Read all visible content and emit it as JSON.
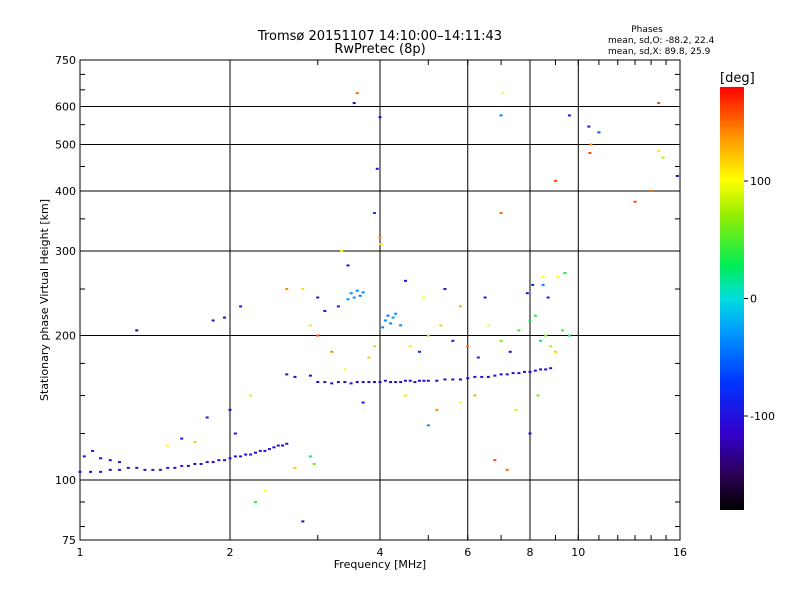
{
  "chart_data": {
    "type": "scatter",
    "title": "Tromsø 20151107 14:10:00–14:11:43",
    "subtitle": "RwPretec (8p)",
    "xlabel": "Frequency [MHz]",
    "ylabel": "Stationary phase Virtual Height [km]",
    "x_scale": "log",
    "y_scale": "log",
    "xlim": [
      1,
      16
    ],
    "ylim": [
      75,
      750
    ],
    "x_ticks": [
      1,
      2,
      4,
      6,
      8,
      10,
      16
    ],
    "x_tick_labels": [
      "1",
      "2",
      "4",
      "6",
      "8",
      "10",
      "16"
    ],
    "y_ticks": [
      75,
      100,
      200,
      300,
      400,
      500,
      600,
      750
    ],
    "y_tick_labels": [
      "75",
      "100",
      "200",
      "300",
      "400",
      "500",
      "600",
      "750"
    ],
    "grid": true,
    "colorbar": {
      "label": "[deg]",
      "range": [
        -180,
        180
      ],
      "ticks": [
        100,
        0,
        -100
      ],
      "tick_labels": [
        "100",
        "0",
        "-100"
      ]
    },
    "stats": {
      "heading": "Phases",
      "line1": "mean, sd,O: -88.2, 22.4",
      "line2": "mean, sd,X:  89.8, 25.9"
    },
    "series": [
      {
        "trace": "low-frequency echo trace (blue)",
        "points": [
          [
            1.0,
            104,
            -105
          ],
          [
            1.05,
            104,
            -105
          ],
          [
            1.1,
            104,
            -100
          ],
          [
            1.15,
            105,
            -105
          ],
          [
            1.2,
            105,
            -100
          ],
          [
            1.25,
            106,
            -100
          ],
          [
            1.3,
            106,
            -105
          ],
          [
            1.35,
            105,
            -100
          ],
          [
            1.4,
            105,
            -105
          ],
          [
            1.45,
            105,
            -100
          ],
          [
            1.5,
            106,
            -100
          ],
          [
            1.55,
            106,
            -105
          ],
          [
            1.6,
            107,
            -100
          ],
          [
            1.65,
            107,
            -105
          ],
          [
            1.7,
            108,
            -100
          ],
          [
            1.75,
            108,
            -105
          ],
          [
            1.8,
            109,
            -100
          ],
          [
            1.85,
            109,
            -105
          ],
          [
            1.9,
            110,
            -100
          ],
          [
            1.95,
            110,
            -105
          ],
          [
            2.0,
            111,
            -100
          ],
          [
            2.05,
            112,
            -105
          ],
          [
            2.1,
            112,
            -100
          ],
          [
            2.15,
            113,
            -105
          ],
          [
            2.2,
            113,
            -100
          ],
          [
            2.25,
            114,
            -105
          ],
          [
            2.3,
            115,
            -100
          ],
          [
            2.35,
            115,
            -105
          ],
          [
            2.4,
            116,
            -100
          ],
          [
            2.45,
            117,
            -105
          ],
          [
            2.5,
            118,
            -100
          ],
          [
            2.55,
            118,
            -105
          ],
          [
            2.6,
            119,
            -100
          ],
          [
            1.02,
            112,
            -110
          ],
          [
            1.06,
            115,
            -100
          ],
          [
            1.1,
            111,
            -105
          ],
          [
            1.15,
            110,
            -100
          ],
          [
            1.2,
            109,
            -105
          ]
        ]
      },
      {
        "trace": "F-region echo trace (blue)",
        "points": [
          [
            3.0,
            160,
            -110
          ],
          [
            3.1,
            160,
            -105
          ],
          [
            3.2,
            159,
            -110
          ],
          [
            3.3,
            160,
            -105
          ],
          [
            3.4,
            160,
            -110
          ],
          [
            3.5,
            159,
            -105
          ],
          [
            3.6,
            160,
            -110
          ],
          [
            3.7,
            160,
            -105
          ],
          [
            3.8,
            160,
            -110
          ],
          [
            3.9,
            160,
            -105
          ],
          [
            4.0,
            160,
            -110
          ],
          [
            4.1,
            161,
            -105
          ],
          [
            4.2,
            160,
            -110
          ],
          [
            4.3,
            160,
            -105
          ],
          [
            4.4,
            160,
            -110
          ],
          [
            4.5,
            161,
            -105
          ],
          [
            4.6,
            161,
            -110
          ],
          [
            4.7,
            160,
            -105
          ],
          [
            4.8,
            161,
            -110
          ],
          [
            4.9,
            161,
            -105
          ],
          [
            5.0,
            161,
            -110
          ],
          [
            5.2,
            161,
            -105
          ],
          [
            5.4,
            162,
            -110
          ],
          [
            5.6,
            162,
            -105
          ],
          [
            5.8,
            162,
            -110
          ],
          [
            6.0,
            163,
            -105
          ],
          [
            6.2,
            164,
            -110
          ],
          [
            6.4,
            164,
            -105
          ],
          [
            6.6,
            164,
            -110
          ],
          [
            6.8,
            165,
            -105
          ],
          [
            7.0,
            166,
            -110
          ],
          [
            7.2,
            166,
            -105
          ],
          [
            7.4,
            167,
            -110
          ],
          [
            7.6,
            167,
            -105
          ],
          [
            7.8,
            168,
            -110
          ],
          [
            8.0,
            168,
            -105
          ],
          [
            8.2,
            169,
            -110
          ],
          [
            8.4,
            170,
            -105
          ],
          [
            8.6,
            170,
            -110
          ],
          [
            8.8,
            171,
            -105
          ],
          [
            2.9,
            165,
            -110
          ],
          [
            2.7,
            164,
            -105
          ],
          [
            2.6,
            166,
            -110
          ]
        ]
      },
      {
        "trace": "scattered echoes",
        "points": [
          [
            3.5,
            245,
            -35
          ],
          [
            3.55,
            240,
            -30
          ],
          [
            3.6,
            248,
            -35
          ],
          [
            3.65,
            242,
            -40
          ],
          [
            3.7,
            246,
            -35
          ],
          [
            3.45,
            238,
            -30
          ],
          [
            4.1,
            215,
            -35
          ],
          [
            4.15,
            220,
            -40
          ],
          [
            4.2,
            212,
            -35
          ],
          [
            4.25,
            218,
            -30
          ],
          [
            4.3,
            222,
            -35
          ],
          [
            4.05,
            208,
            -40
          ],
          [
            4.4,
            210,
            -35
          ],
          [
            3.3,
            230,
            -90
          ],
          [
            3.8,
            180,
            120
          ],
          [
            3.9,
            190,
            80
          ],
          [
            3.4,
            170,
            100
          ],
          [
            3.2,
            185,
            140
          ],
          [
            3.0,
            200,
            160
          ],
          [
            2.9,
            210,
            90
          ],
          [
            4.6,
            190,
            110
          ],
          [
            4.8,
            185,
            -90
          ],
          [
            5.0,
            200,
            70
          ],
          [
            5.3,
            210,
            120
          ],
          [
            5.6,
            195,
            -100
          ],
          [
            6.0,
            190,
            150
          ],
          [
            6.3,
            180,
            -80
          ],
          [
            6.6,
            210,
            100
          ],
          [
            7.0,
            195,
            60
          ],
          [
            7.3,
            185,
            -110
          ],
          [
            7.6,
            205,
            50
          ],
          [
            8.0,
            215,
            30
          ],
          [
            8.2,
            220,
            40
          ],
          [
            8.4,
            195,
            20
          ],
          [
            8.6,
            200,
            60
          ],
          [
            8.8,
            190,
            80
          ],
          [
            9.0,
            185,
            120
          ],
          [
            9.3,
            205,
            50
          ],
          [
            9.6,
            200,
            30
          ],
          [
            8.1,
            255,
            -90
          ],
          [
            8.5,
            265,
            100
          ],
          [
            7.9,
            245,
            -100
          ],
          [
            6.5,
            240,
            -100
          ],
          [
            5.8,
            230,
            130
          ],
          [
            5.4,
            250,
            -100
          ],
          [
            4.9,
            240,
            100
          ],
          [
            4.5,
            260,
            -100
          ],
          [
            3.35,
            300,
            100
          ],
          [
            3.45,
            280,
            -100
          ],
          [
            3.6,
            640,
            150
          ],
          [
            3.55,
            610,
            -120
          ],
          [
            4.0,
            570,
            -100
          ],
          [
            3.95,
            445,
            -100
          ],
          [
            3.9,
            360,
            -70
          ],
          [
            4.0,
            320,
            140
          ],
          [
            4.02,
            310,
            110
          ],
          [
            7.05,
            640,
            100
          ],
          [
            7.0,
            575,
            -40
          ],
          [
            7.0,
            360,
            150
          ],
          [
            10.5,
            545,
            -100
          ],
          [
            10.6,
            500,
            140
          ],
          [
            10.55,
            480,
            160
          ],
          [
            11.0,
            530,
            -60
          ],
          [
            13.0,
            380,
            160
          ],
          [
            14.0,
            400,
            150
          ],
          [
            14.5,
            610,
            160
          ],
          [
            14.5,
            485,
            110
          ],
          [
            14.8,
            470,
            80
          ],
          [
            15.8,
            430,
            -130
          ],
          [
            9.6,
            575,
            -90
          ],
          [
            9.0,
            420,
            160
          ],
          [
            1.3,
            205,
            -140
          ],
          [
            1.85,
            215,
            -110
          ],
          [
            1.95,
            218,
            -110
          ],
          [
            2.1,
            230,
            -100
          ],
          [
            2.2,
            150,
            90
          ],
          [
            2.0,
            140,
            -100
          ],
          [
            1.8,
            135,
            -100
          ],
          [
            2.05,
            125,
            -100
          ],
          [
            1.7,
            120,
            120
          ],
          [
            1.5,
            118,
            100
          ],
          [
            1.6,
            122,
            -100
          ],
          [
            2.35,
            95,
            100
          ],
          [
            2.25,
            90,
            40
          ],
          [
            2.9,
            112,
            30
          ],
          [
            2.95,
            108,
            60
          ],
          [
            2.7,
            106,
            120
          ],
          [
            2.8,
            82,
            -110
          ],
          [
            2.6,
            250,
            140
          ],
          [
            2.8,
            250,
            110
          ],
          [
            3.0,
            240,
            -100
          ],
          [
            3.1,
            225,
            -100
          ],
          [
            3.7,
            145,
            -110
          ],
          [
            4.5,
            150,
            110
          ],
          [
            5.0,
            130,
            -30
          ],
          [
            5.2,
            140,
            140
          ],
          [
            5.8,
            145,
            100
          ],
          [
            6.2,
            150,
            130
          ],
          [
            6.8,
            110,
            160
          ],
          [
            7.2,
            105,
            150
          ],
          [
            7.5,
            140,
            90
          ],
          [
            8.3,
            150,
            60
          ],
          [
            8.0,
            125,
            -100
          ],
          [
            8.5,
            255,
            -40
          ],
          [
            8.7,
            240,
            -100
          ],
          [
            9.1,
            265,
            100
          ],
          [
            9.4,
            270,
            40
          ]
        ]
      }
    ]
  }
}
